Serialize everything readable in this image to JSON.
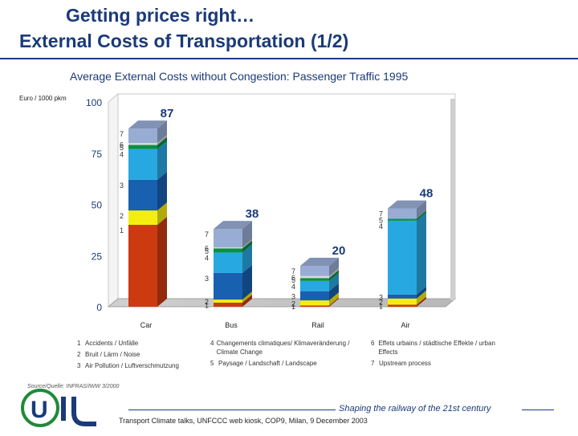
{
  "slide": {
    "title_line1": "Getting prices right…",
    "title_line2": "External Costs of Transportation (1/2)",
    "source": "Source/Quelle: INFRAS/IWW 3/2000",
    "tagline": "Shaping the railway of the 21st century",
    "footer": "Transport Climate talks, UNFCCC web kiosk, COP9, Milan, 9 December 2003"
  },
  "chart_data": {
    "type": "bar",
    "stacked": true,
    "title": "Average External Costs without Congestion: Passenger Traffic 1995",
    "ylabel": "Euro / 1000 pkm",
    "ylim": [
      0,
      100
    ],
    "yticks": [
      "0",
      "25",
      "50",
      "75",
      "100"
    ],
    "categories": [
      "Car",
      "Bus",
      "Rail",
      "Air"
    ],
    "totals": [
      "87",
      "38",
      "20",
      "48"
    ],
    "series": [
      {
        "id": "1",
        "name": "Accidents / Unfälle",
        "color": "#cc3a10",
        "values": [
          40,
          2,
          0.6,
          1
        ]
      },
      {
        "id": "2",
        "name": "Bruit / Lärm / Noise",
        "color": "#f4ee10",
        "values": [
          7,
          1.5,
          2.5,
          3
        ]
      },
      {
        "id": "3",
        "name": "Air Pollution / Luftverschmutzung",
        "color": "#1860b0",
        "values": [
          15,
          13,
          4.5,
          2
        ]
      },
      {
        "id": "4",
        "name": "Changements climatiques/ Klimaveränderung / Climate Change",
        "color": "#28a8e0",
        "values": [
          15,
          10,
          5,
          36
        ]
      },
      {
        "id": "5",
        "name": "Paysage / Landschaft / Landscape",
        "color": "#0a9040",
        "values": [
          2,
          2,
          1.4,
          1
        ]
      },
      {
        "id": "6",
        "name": "Effets urbains / städtische Effekte / urban Effects",
        "color": "#d8d8d8",
        "values": [
          1,
          0.5,
          1,
          0
        ]
      },
      {
        "id": "7",
        "name": "Upstream process",
        "color": "#98acd4",
        "values": [
          7,
          9,
          5,
          5
        ]
      }
    ],
    "segment_labels": [
      [
        "1",
        "2",
        "3",
        "4",
        "5",
        "6",
        "7"
      ],
      [
        "1",
        "2",
        "3",
        "4",
        "5",
        "6",
        "7"
      ],
      [
        "1",
        "2",
        "3",
        "4",
        "5",
        "6",
        "7"
      ],
      [
        "1",
        "2",
        "3",
        "4",
        "5",
        "",
        "7"
      ]
    ],
    "legend_columns": [
      [
        {
          "num": "1",
          "text": "Accidents / Unfälle"
        },
        {
          "num": "2",
          "text": "Bruit / Lärm / Noise"
        },
        {
          "num": "3",
          "text": "Air Pollution / Luftverschmutzung"
        }
      ],
      [
        {
          "num": "4",
          "text": "Changements climatiques/ Klimaveränderung / Climate Change"
        },
        {
          "num": "5",
          "text": "Paysage / Landschaft / Landscape"
        }
      ],
      [
        {
          "num": "6",
          "text": "Effets urbains / städtische Effekte / urban Effects"
        },
        {
          "num": "7",
          "text": "Upstream process"
        }
      ]
    ]
  }
}
